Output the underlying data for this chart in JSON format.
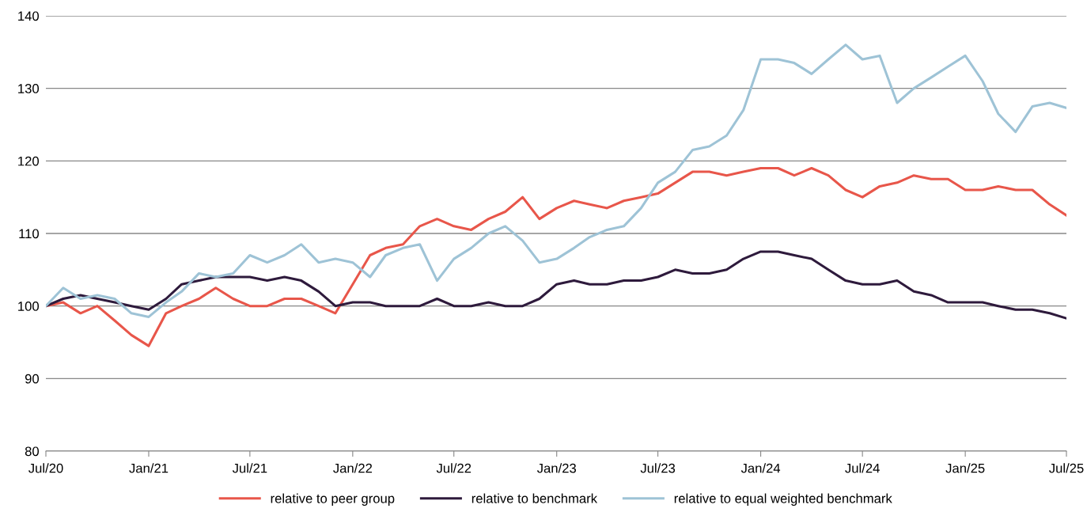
{
  "chart_data": {
    "type": "line",
    "x": [
      "2020-07",
      "2020-08",
      "2020-09",
      "2020-10",
      "2020-11",
      "2020-12",
      "2021-01",
      "2021-02",
      "2021-03",
      "2021-04",
      "2021-05",
      "2021-06",
      "2021-07",
      "2021-08",
      "2021-09",
      "2021-10",
      "2021-11",
      "2021-12",
      "2022-01",
      "2022-02",
      "2022-03",
      "2022-04",
      "2022-05",
      "2022-06",
      "2022-07",
      "2022-08",
      "2022-09",
      "2022-10",
      "2022-11",
      "2022-12",
      "2023-01",
      "2023-02",
      "2023-03",
      "2023-04",
      "2023-05",
      "2023-06",
      "2023-07",
      "2023-08",
      "2023-09",
      "2023-10",
      "2023-11",
      "2023-12",
      "2024-01",
      "2024-02",
      "2024-03",
      "2024-04",
      "2024-05",
      "2024-06",
      "2024-07",
      "2024-08",
      "2024-09",
      "2024-10",
      "2024-11",
      "2024-12",
      "2025-01",
      "2025-02",
      "2025-03",
      "2025-04",
      "2025-05",
      "2025-06",
      "2025-07"
    ],
    "series": [
      {
        "name": "relative to peer group",
        "color": "#e8564a",
        "values": [
          100,
          100.5,
          99,
          100,
          98,
          96,
          94.5,
          99,
          100,
          101,
          102.5,
          101,
          100,
          100,
          101,
          101,
          100,
          99,
          103,
          107,
          108,
          108.5,
          111,
          112,
          111,
          110.5,
          112,
          113,
          115,
          112,
          113.5,
          114.5,
          114,
          113.5,
          114.5,
          115,
          115.5,
          117,
          118.5,
          118.5,
          118,
          118.5,
          119,
          119,
          118,
          119,
          118,
          116,
          115,
          116.5,
          117,
          118,
          117.5,
          117.5,
          116,
          116,
          116.5,
          116,
          116,
          114,
          112.5
        ]
      },
      {
        "name": "relative to benchmark",
        "color": "#2e1a3c",
        "values": [
          100,
          101,
          101.5,
          101,
          100.5,
          100,
          99.5,
          101,
          103,
          103.5,
          104,
          104,
          104,
          103.5,
          104,
          103.5,
          102,
          100,
          100.5,
          100.5,
          100,
          100,
          100,
          101,
          100,
          100,
          100.5,
          100,
          100,
          101,
          103,
          103.5,
          103,
          103,
          103.5,
          103.5,
          104,
          105,
          104.5,
          104.5,
          105,
          106.5,
          107.5,
          107.5,
          107,
          106.5,
          105,
          103.5,
          103,
          103,
          103.5,
          102,
          101.5,
          100.5,
          100.5,
          100.5,
          100,
          99.5,
          99.5,
          99,
          98.3
        ]
      },
      {
        "name": "relative to equal weighted benchmark",
        "color": "#9ec3d6",
        "values": [
          100,
          102.5,
          101,
          101.5,
          101,
          99,
          98.5,
          100.5,
          102,
          104.5,
          104,
          104.5,
          107,
          106,
          107,
          108.5,
          106,
          106.5,
          106,
          104,
          107,
          108,
          108.5,
          103.5,
          106.5,
          108,
          110,
          111,
          109,
          106,
          106.5,
          108,
          109.5,
          110.5,
          111,
          113.5,
          117,
          118.5,
          121.5,
          122,
          123.5,
          127,
          134,
          134,
          133.5,
          132,
          134,
          136,
          134,
          134.5,
          128,
          130,
          131.5,
          133,
          134.5,
          131,
          126.5,
          124,
          127.5,
          128,
          127.3
        ]
      }
    ],
    "xlim": [
      "2020-07",
      "2025-07"
    ],
    "xticks": [
      {
        "value": "2020-07",
        "label": "Jul/20"
      },
      {
        "value": "2021-01",
        "label": "Jan/21"
      },
      {
        "value": "2021-07",
        "label": "Jul/21"
      },
      {
        "value": "2022-01",
        "label": "Jan/22"
      },
      {
        "value": "2022-07",
        "label": "Jul/22"
      },
      {
        "value": "2023-01",
        "label": "Jan/23"
      },
      {
        "value": "2023-07",
        "label": "Jul/23"
      },
      {
        "value": "2024-01",
        "label": "Jan/24"
      },
      {
        "value": "2024-07",
        "label": "Jul/24"
      },
      {
        "value": "2025-01",
        "label": "Jan/25"
      },
      {
        "value": "2025-07",
        "label": "Jul/25"
      }
    ],
    "ylim": [
      80,
      140
    ],
    "yticks": [
      80,
      90,
      100,
      110,
      120,
      130,
      140
    ],
    "grid": "y",
    "legend": "bottom",
    "line_style": "solid"
  }
}
